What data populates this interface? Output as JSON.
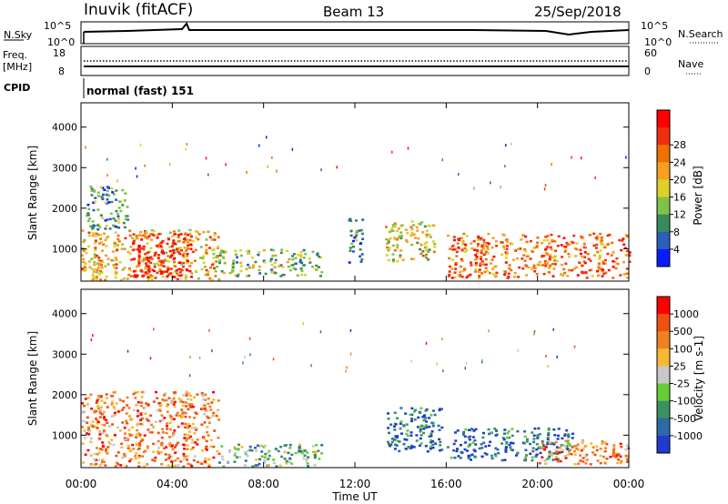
{
  "header": {
    "site": "Inuvik (fitACF)",
    "beam": "Beam 13",
    "date": "25/Sep/2018"
  },
  "noise_panel": {
    "left_label": "N.Sky",
    "right_label": "N.Search",
    "left_ticks": [
      "10^5",
      "10^0"
    ],
    "right_ticks": [
      "10^5",
      "10^0"
    ]
  },
  "freq_panel": {
    "left_label_1": "Freq.",
    "left_label_2": "[MHz]",
    "right_label": "Nave",
    "left_ticks": [
      "18",
      "8"
    ],
    "right_ticks": [
      "60",
      "0"
    ]
  },
  "cpid": {
    "label": "CPID",
    "value": "normal (fast) 151"
  },
  "chart_data": [
    {
      "type": "heatmap",
      "name": "power",
      "ylabel": "Slant Range [km]",
      "xlabel": "Time UT",
      "x_ticks": [
        "00:00",
        "04:00",
        "08:00",
        "12:00",
        "16:00",
        "20:00",
        "00:00"
      ],
      "x_hours": [
        0,
        4,
        8,
        12,
        16,
        20,
        24
      ],
      "y_ticks": [
        1000,
        2000,
        3000,
        4000
      ],
      "ylim": [
        200,
        4600
      ],
      "colorbar": {
        "title": "Power [dB]",
        "ticks": [
          "4",
          "8",
          "12",
          "16",
          "20",
          "24",
          "28"
        ],
        "colors": [
          "#0a1cff",
          "#2b5fb8",
          "#3a8a5a",
          "#7ec24a",
          "#ddd02a",
          "#f5a020",
          "#f07000",
          "#ee3010",
          "#ff0000"
        ]
      },
      "regions": [
        {
          "t0": 0.0,
          "t1": 6.0,
          "r0": 250,
          "r1": 1500,
          "level": 5
        },
        {
          "t0": 2.2,
          "t1": 4.8,
          "r0": 300,
          "r1": 1400,
          "level": 8
        },
        {
          "t0": 0.2,
          "t1": 2.0,
          "r0": 1500,
          "r1": 2600,
          "level": 2
        },
        {
          "t0": 6.0,
          "t1": 10.5,
          "r0": 350,
          "r1": 1000,
          "level": 3
        },
        {
          "t0": 11.7,
          "t1": 12.3,
          "r0": 600,
          "r1": 1800,
          "level": 2
        },
        {
          "t0": 13.3,
          "t1": 15.5,
          "r0": 700,
          "r1": 1700,
          "level": 4
        },
        {
          "t0": 16.0,
          "t1": 24.0,
          "r0": 300,
          "r1": 1400,
          "level": 6
        }
      ]
    },
    {
      "type": "heatmap",
      "name": "velocity",
      "ylabel": "Slant Range [km]",
      "xlabel": "Time UT",
      "x_ticks": [
        "00:00",
        "04:00",
        "08:00",
        "12:00",
        "16:00",
        "20:00",
        "00:00"
      ],
      "x_hours": [
        0,
        4,
        8,
        12,
        16,
        20,
        24
      ],
      "y_ticks": [
        1000,
        2000,
        3000,
        4000
      ],
      "ylim": [
        200,
        4600
      ],
      "colorbar": {
        "title": "Velocity [m s-1]",
        "ticks": [
          "1000",
          "500",
          "100",
          "25",
          "-25",
          "-100",
          "-500",
          "-1000"
        ],
        "colors": [
          "#1e3cd0",
          "#2e6aa8",
          "#3a9060",
          "#66cc33",
          "#c8c8c8",
          "#f8b830",
          "#f08020",
          "#f05010",
          "#ff0000"
        ]
      },
      "regions": [
        {
          "t0": 0.0,
          "t1": 6.0,
          "r0": 250,
          "r1": 2100,
          "level": 6
        },
        {
          "t0": 6.0,
          "t1": 10.5,
          "r0": 250,
          "r1": 800,
          "level": 3
        },
        {
          "t0": 13.3,
          "t1": 15.8,
          "r0": 600,
          "r1": 1700,
          "level": 1
        },
        {
          "t0": 16.0,
          "t1": 21.5,
          "r0": 400,
          "r1": 1200,
          "level": 1
        },
        {
          "t0": 20.0,
          "t1": 24.0,
          "r0": 300,
          "r1": 900,
          "level": 6
        }
      ]
    }
  ]
}
